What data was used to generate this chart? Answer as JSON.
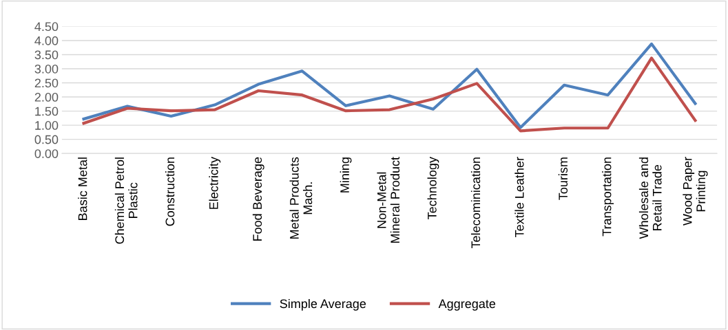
{
  "chart_data": {
    "type": "line",
    "categories": [
      "Basic Metal",
      "Chemical Petrol\nPlastic",
      "Construction",
      "Electricity",
      "Food Beverage",
      "Metal Products\nMach.",
      "Mining",
      "Non-Metal\nMineral Product",
      "Technology",
      "Telecominication",
      "Textile Leather",
      "Tourism",
      "Transportation",
      "Wholesale and\nRetail Trade",
      "Wood Paper\nPrinting"
    ],
    "series": [
      {
        "name": "Simple Average",
        "color": "#4f81bd",
        "values": [
          1.22,
          1.67,
          1.32,
          1.72,
          2.45,
          2.92,
          1.69,
          2.04,
          1.57,
          2.98,
          0.92,
          2.42,
          2.07,
          3.88,
          1.77
        ]
      },
      {
        "name": "Aggregate",
        "color": "#c0504d",
        "values": [
          1.07,
          1.6,
          1.51,
          1.55,
          2.22,
          2.07,
          1.51,
          1.55,
          1.93,
          2.48,
          0.8,
          0.9,
          0.9,
          3.38,
          1.17
        ]
      }
    ],
    "ylim": [
      0,
      4.5
    ],
    "yticks": [
      {
        "value": 0,
        "label": "0.00"
      },
      {
        "value": 0.5,
        "label": "0.50"
      },
      {
        "value": 1,
        "label": "1.00"
      },
      {
        "value": 1.5,
        "label": "1.50"
      },
      {
        "value": 2,
        "label": "2.00"
      },
      {
        "value": 2.5,
        "label": "2.50"
      },
      {
        "value": 3,
        "label": "3.00"
      },
      {
        "value": 3.5,
        "label": "3.50"
      },
      {
        "value": 4,
        "label": "4.00"
      },
      {
        "value": 4.5,
        "label": "4.50"
      }
    ],
    "grid": "y",
    "legend": "bottom",
    "marker": "none",
    "line_style": "solid"
  }
}
